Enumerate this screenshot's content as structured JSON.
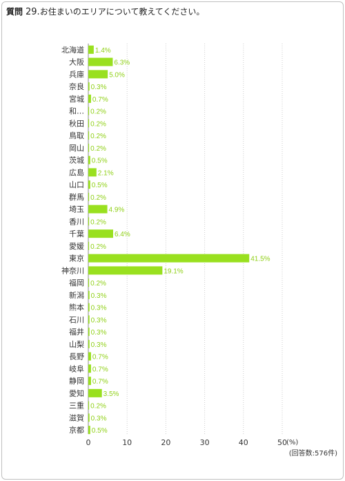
{
  "question": {
    "label": "質問",
    "number": "29.",
    "text": "お住まいのエリアについて教えてください。"
  },
  "chart_data": {
    "type": "bar",
    "orientation": "horizontal",
    "categories": [
      "北海道",
      "大阪",
      "兵庫",
      "奈良",
      "宮城",
      "和…",
      "秋田",
      "鳥取",
      "岡山",
      "茨城",
      "広島",
      "山口",
      "群馬",
      "埼玉",
      "香川",
      "千葉",
      "愛媛",
      "東京",
      "神奈川",
      "福岡",
      "新潟",
      "熊本",
      "石川",
      "福井",
      "山梨",
      "長野",
      "岐阜",
      "静岡",
      "愛知",
      "三重",
      "滋賀",
      "京都"
    ],
    "values": [
      1.4,
      6.3,
      5.0,
      0.3,
      0.7,
      0.2,
      0.2,
      0.2,
      0.2,
      0.5,
      2.1,
      0.5,
      0.2,
      4.9,
      0.2,
      6.4,
      0.2,
      41.5,
      19.1,
      0.2,
      0.3,
      0.3,
      0.3,
      0.3,
      0.3,
      0.7,
      0.7,
      0.7,
      3.5,
      0.2,
      0.3,
      0.5
    ],
    "value_labels": [
      "1.4%",
      "6.3%",
      "5.0%",
      "0.3%",
      "0.7%",
      "0.2%",
      "0.2%",
      "0.2%",
      "0.2%",
      "0.5%",
      "2.1%",
      "0.5%",
      "0.2%",
      "4.9%",
      "0.2%",
      "6.4%",
      "0.2%",
      "41.5%",
      "19.1%",
      "0.2%",
      "0.3%",
      "0.3%",
      "0.3%",
      "0.3%",
      "0.3%",
      "0.7%",
      "0.7%",
      "0.7%",
      "3.5%",
      "0.2%",
      "0.3%",
      "0.5%"
    ],
    "xticks": [
      "0",
      "10",
      "20",
      "30",
      "40",
      "50"
    ],
    "xlim": [
      0,
      50
    ],
    "unit_label": "(%)",
    "respondents_note": "(回答数:576件)",
    "grid": true,
    "bar_color": "#99e01f",
    "grid_color": "#cccccc"
  }
}
